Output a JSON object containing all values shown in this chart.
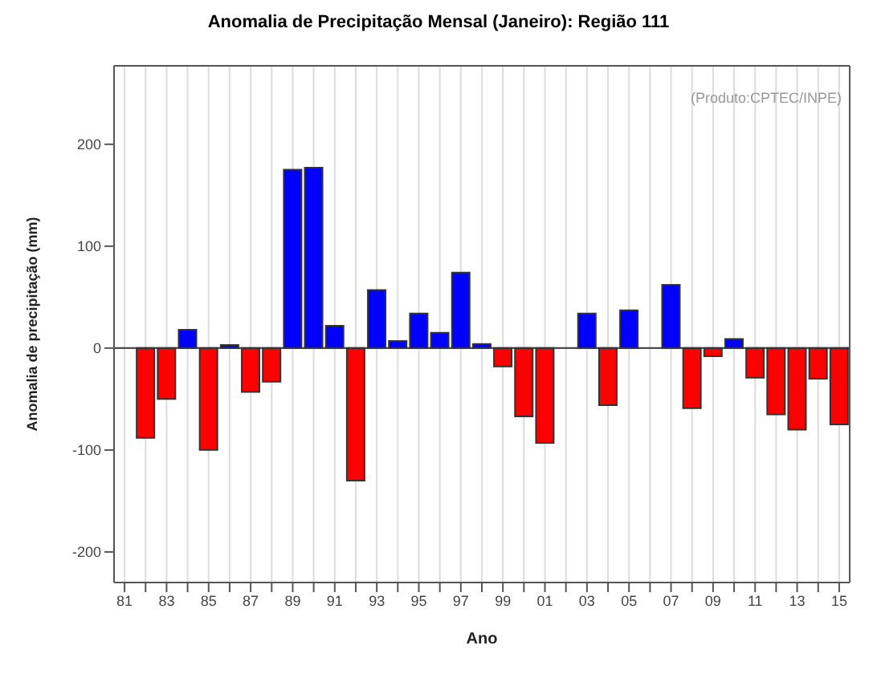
{
  "chart_data": {
    "type": "bar",
    "title": "Anomalia de Precipitação Mensal (Janeiro): Região 111",
    "xlabel": "Ano",
    "ylabel": "Anomalia de precipitação (mm)",
    "annotations": [
      "(Produto:CPTEC/INPE)"
    ],
    "categories": [
      "81",
      null,
      "83",
      null,
      "85",
      null,
      "87",
      null,
      "89",
      null,
      "91",
      null,
      "93",
      null,
      "95",
      null,
      "97",
      null,
      "99",
      null,
      "01",
      null,
      "03",
      null,
      "05",
      null,
      "07",
      null,
      "09",
      null,
      "11",
      null,
      "13",
      null,
      "15"
    ],
    "values": [
      null,
      -88,
      -50,
      18,
      -100,
      3,
      -43,
      -33,
      175,
      177,
      22,
      -130,
      57,
      7,
      34,
      15,
      74,
      4,
      -18,
      -67,
      -93,
      null,
      34,
      -56,
      37,
      null,
      62,
      -59,
      -8,
      9,
      -29,
      -65,
      -80,
      -30,
      -75
    ],
    "colors": [
      "#0000ff",
      "#ff0000",
      "#ff0000",
      "#0000ff",
      "#ff0000",
      "#0000ff",
      "#ff0000",
      "#ff0000",
      "#0000ff",
      "#0000ff",
      "#0000ff",
      "#ff0000",
      "#0000ff",
      "#0000ff",
      "#0000ff",
      "#0000ff",
      "#0000ff",
      "#0000ff",
      "#ff0000",
      "#ff0000",
      "#ff0000",
      "#0000ff",
      "#0000ff",
      "#ff0000",
      "#0000ff",
      "#0000ff",
      "#0000ff",
      "#ff0000",
      "#ff0000",
      "#0000ff",
      "#ff0000",
      "#ff0000",
      "#ff0000",
      "#ff0000",
      "#ff0000"
    ],
    "ylim": [
      -230,
      277
    ],
    "yticks": [
      -200,
      -100,
      0,
      100,
      200
    ],
    "ref_lines": [
      {
        "axis": "y",
        "value": 0,
        "color": "#333333"
      }
    ],
    "grid": "x"
  }
}
